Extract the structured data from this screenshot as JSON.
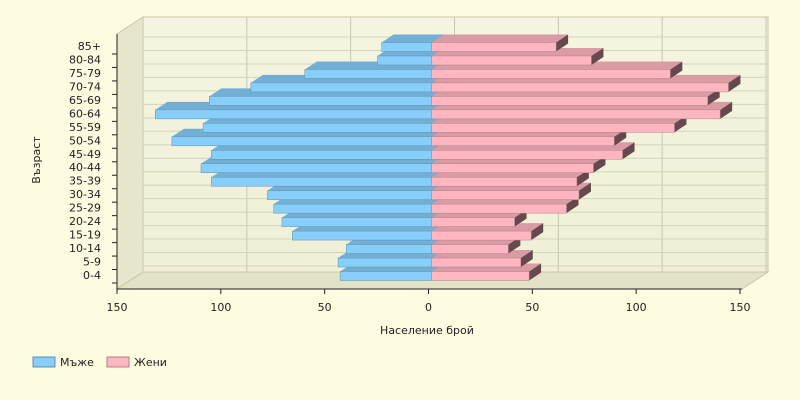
{
  "chart_data": {
    "type": "pyramid",
    "x_label": "Население брой",
    "y_label": "Възраст",
    "categories": [
      "0-4",
      "5-9",
      "10-14",
      "15-19",
      "20-24",
      "25-29",
      "30-34",
      "35-39",
      "40-44",
      "45-49",
      "50-54",
      "55-59",
      "60-64",
      "65-69",
      "70-74",
      "75-79",
      "80-84",
      "85+"
    ],
    "series": [
      {
        "name": "Мъже",
        "color": "#87cefa",
        "values": [
          -44,
          -45,
          -41,
          -67,
          -72,
          -76,
          -79,
          -106,
          -111,
          -106,
          -125,
          -110,
          -133,
          -107,
          -87,
          -61,
          -26,
          -24
        ]
      },
      {
        "name": "Жени",
        "color": "#ffb6c1",
        "values": [
          47,
          43,
          37,
          48,
          40,
          65,
          71,
          70,
          78,
          92,
          88,
          117,
          139,
          133,
          143,
          115,
          77,
          60
        ]
      }
    ],
    "xlim": [
      -150,
      150
    ],
    "xticks": [
      {
        "value": -150,
        "label": "150"
      },
      {
        "value": -100,
        "label": "100"
      },
      {
        "value": -50,
        "label": "50"
      },
      0,
      50,
      100,
      150
    ],
    "grid": true,
    "legend": "bottom-left"
  }
}
